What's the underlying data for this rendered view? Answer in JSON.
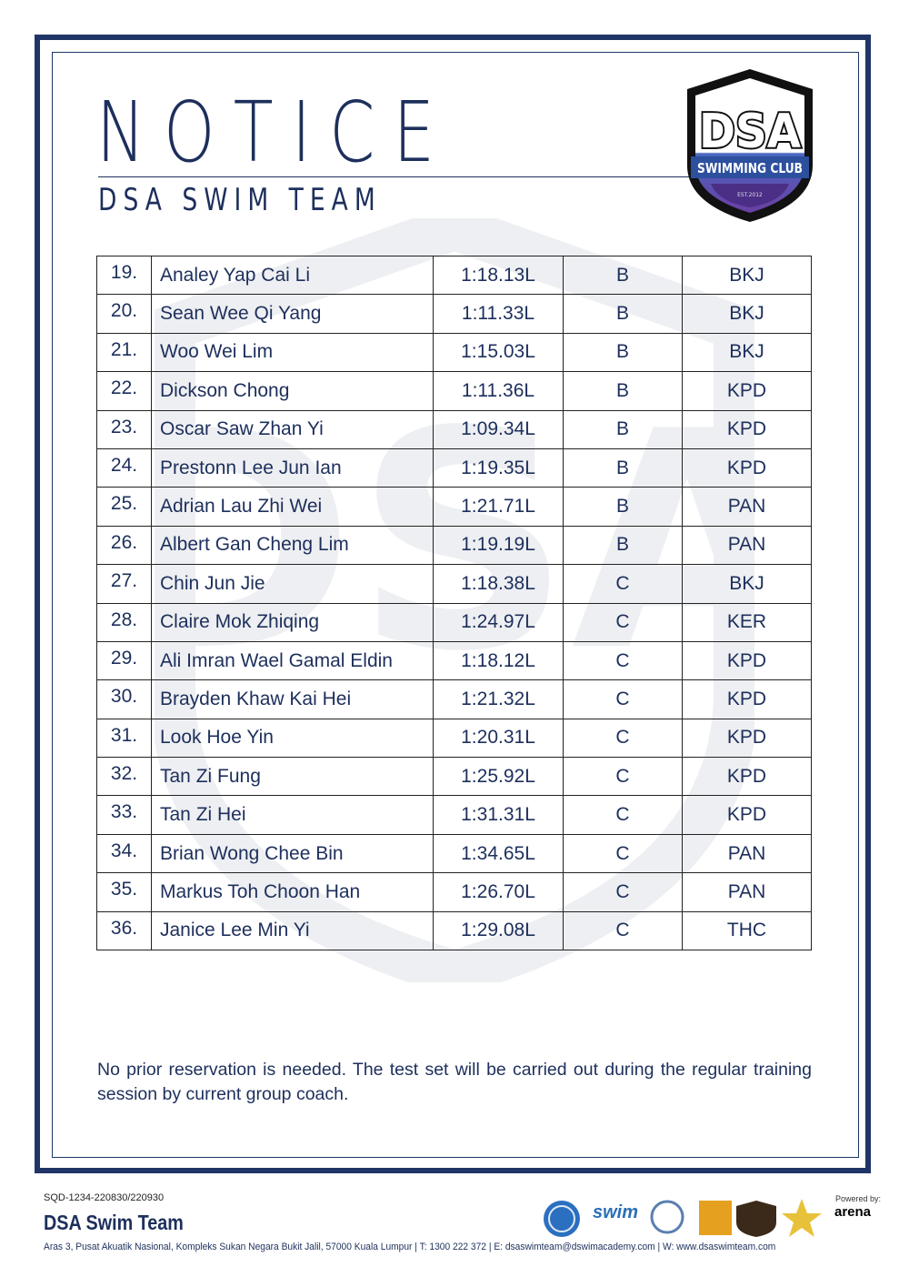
{
  "header": {
    "title": "NOTICE",
    "subtitle": "DSA SWIM TEAM",
    "logo_text": "DSA",
    "logo_banner": "SWIMMING CLUB",
    "logo_est": "EST.2012"
  },
  "results": [
    {
      "num": "19.",
      "name": "Analey Yap Cai Li",
      "time": "1:18.13L",
      "group": "B",
      "club": "BKJ"
    },
    {
      "num": "20.",
      "name": "Sean Wee Qi Yang",
      "time": "1:11.33L",
      "group": "B",
      "club": "BKJ"
    },
    {
      "num": "21.",
      "name": "Woo Wei Lim",
      "time": "1:15.03L",
      "group": "B",
      "club": "BKJ"
    },
    {
      "num": "22.",
      "name": "Dickson Chong",
      "time": "1:11.36L",
      "group": "B",
      "club": "KPD"
    },
    {
      "num": "23.",
      "name": "Oscar Saw Zhan Yi",
      "time": "1:09.34L",
      "group": "B",
      "club": "KPD"
    },
    {
      "num": "24.",
      "name": "Prestonn Lee Jun Ian",
      "time": "1:19.35L",
      "group": "B",
      "club": "KPD"
    },
    {
      "num": "25.",
      "name": "Adrian Lau Zhi Wei",
      "time": "1:21.71L",
      "group": "B",
      "club": "PAN"
    },
    {
      "num": "26.",
      "name": "Albert Gan Cheng Lim",
      "time": "1:19.19L",
      "group": "B",
      "club": "PAN"
    },
    {
      "num": "27.",
      "name": "Chin Jun Jie",
      "time": "1:18.38L",
      "group": "C",
      "club": "BKJ"
    },
    {
      "num": "28.",
      "name": "Claire Mok Zhiqing",
      "time": "1:24.97L",
      "group": "C",
      "club": "KER"
    },
    {
      "num": "29.",
      "name": "Ali Imran Wael Gamal Eldin",
      "time": "1:18.12L",
      "group": "C",
      "club": "KPD"
    },
    {
      "num": "30.",
      "name": "Brayden Khaw Kai Hei",
      "time": "1:21.32L",
      "group": "C",
      "club": "KPD"
    },
    {
      "num": "31.",
      "name": "Look Hoe Yin",
      "time": "1:20.31L",
      "group": "C",
      "club": "KPD"
    },
    {
      "num": "32.",
      "name": "Tan Zi Fung",
      "time": "1:25.92L",
      "group": "C",
      "club": "KPD"
    },
    {
      "num": "33.",
      "name": "Tan Zi Hei",
      "time": "1:31.31L",
      "group": "C",
      "club": "KPD"
    },
    {
      "num": "34.",
      "name": "Brian Wong Chee Bin",
      "time": "1:34.65L",
      "group": "C",
      "club": "PAN"
    },
    {
      "num": "35.",
      "name": "Markus Toh Choon Han",
      "time": "1:26.70L",
      "group": "C",
      "club": "PAN"
    },
    {
      "num": "36.",
      "name": "Janice Lee Min Yi",
      "time": "1:29.08L",
      "group": "C",
      "club": "THC"
    }
  ],
  "footnote": "No prior reservation is needed. The test set will be carried out during the regular training session by current group coach.",
  "footer": {
    "doc_code": "SQD-1234-220830/220930",
    "team_name": "DSA Swim Team",
    "address": "Aras 3, Pusat Akuatik Nasional, Kompleks Sukan Negara Bukit Jalil, 57000 Kuala Lumpur  |  T: 1300 222 372  |  E: dsaswimteam@dswimacademy.com  |  W: www.dsaswimteam.com",
    "powered_by": "Powered by:",
    "sponsor": "arena",
    "swim_badge": "swim"
  },
  "colors": {
    "navy": "#1d2f5c",
    "frame": "#1f3566",
    "logo_purple": "#5a3f9c"
  }
}
